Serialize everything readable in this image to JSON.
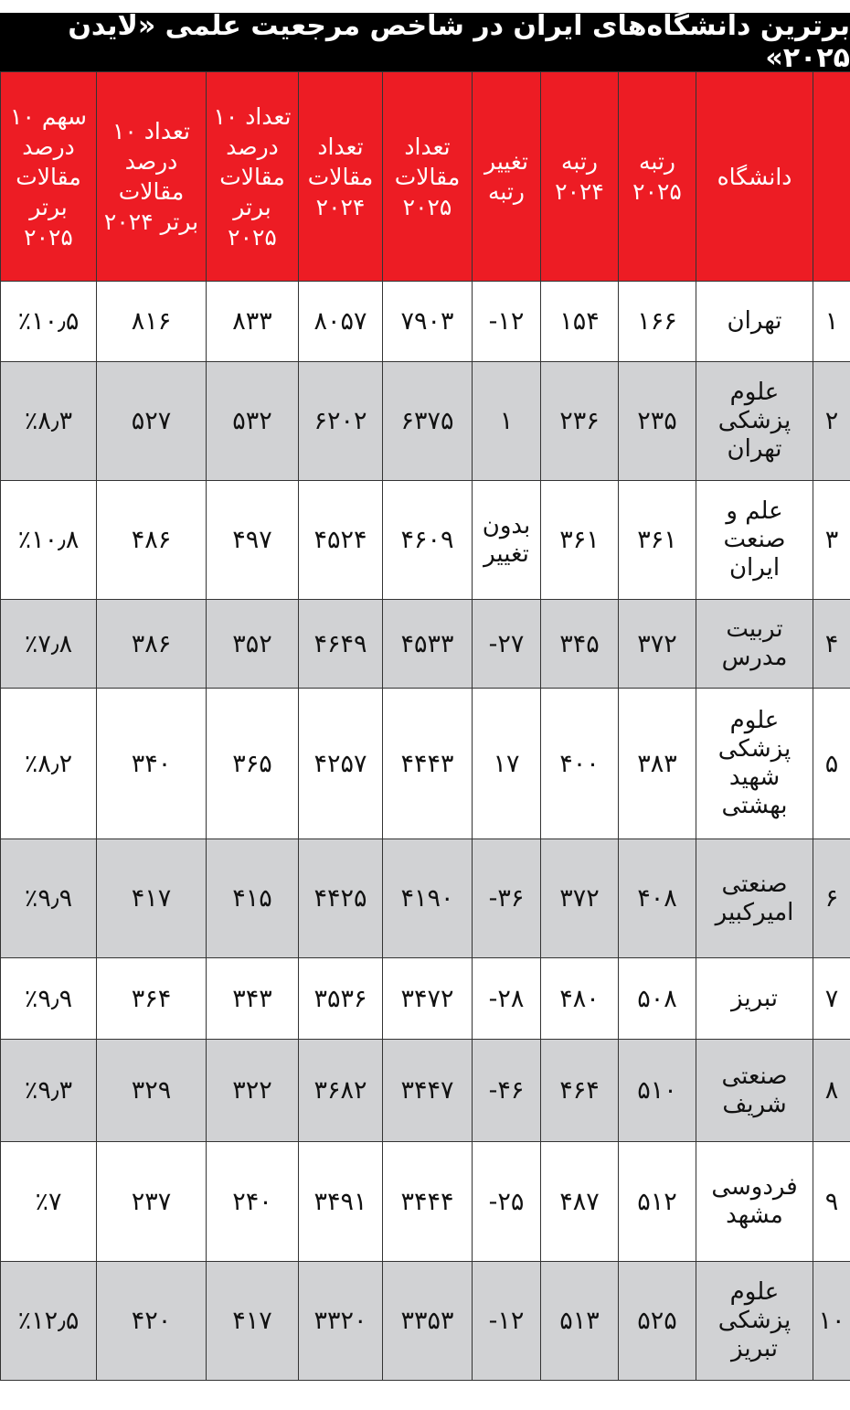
{
  "title": "برترین دانشگاه‌های ایران در شاخص مرجعیت علمی «لایدن ۲۰۲۵»",
  "colors": {
    "header_bg": "#ed1c24",
    "title_bg": "#000000",
    "alt_row": "#d1d2d4"
  },
  "columns": [
    "",
    "دانشگاه",
    "رتبه ۲۰۲۵",
    "رتبه ۲۰۲۴",
    "تغییر رتبه",
    "تعداد مقالات ۲۰۲۵",
    "تعداد مقالات ۲۰۲۴",
    "تعداد ۱۰ درصد مقالات برتر ۲۰۲۵",
    "تعداد ۱۰ درصد مقالات برتر ۲۰۲۴",
    "سهم ۱۰ درصد مقالات برتر ۲۰۲۵"
  ],
  "rows": [
    [
      "۱",
      "تهران",
      "۱۶۶",
      "۱۵۴",
      "-۱۲",
      "۷۹۰۳",
      "۸۰۵۷",
      "۸۳۳",
      "۸۱۶",
      "٪۱۰٫۵"
    ],
    [
      "۲",
      "علوم پزشکی تهران",
      "۲۳۵",
      "۲۳۶",
      "۱",
      "۶۳۷۵",
      "۶۲۰۲",
      "۵۳۲",
      "۵۲۷",
      "٪۸٫۳"
    ],
    [
      "۳",
      "علم و صنعت ایران",
      "۳۶۱",
      "۳۶۱",
      "بدون تغییر",
      "۴۶۰۹",
      "۴۵۲۴",
      "۴۹۷",
      "۴۸۶",
      "٪۱۰٫۸"
    ],
    [
      "۴",
      "تربیت مدرس",
      "۳۷۲",
      "۳۴۵",
      "-۲۷",
      "۴۵۳۳",
      "۴۶۴۹",
      "۳۵۲",
      "۳۸۶",
      "٪۷٫۸"
    ],
    [
      "۵",
      "علوم پزشکی شهید بهشتی",
      "۳۸۳",
      "۴۰۰",
      "۱۷",
      "۴۴۴۳",
      "۴۲۵۷",
      "۳۶۵",
      "۳۴۰",
      "٪۸٫۲"
    ],
    [
      "۶",
      "صنعتی امیرکبیر",
      "۴۰۸",
      "۳۷۲",
      "-۳۶",
      "۴۱۹۰",
      "۴۴۲۵",
      "۴۱۵",
      "۴۱۷",
      "٪۹٫۹"
    ],
    [
      "۷",
      "تبریز",
      "۵۰۸",
      "۴۸۰",
      "-۲۸",
      "۳۴۷۲",
      "۳۵۳۶",
      "۳۴۳",
      "۳۶۴",
      "٪۹٫۹"
    ],
    [
      "۸",
      "صنعتی شریف",
      "۵۱۰",
      "۴۶۴",
      "-۴۶",
      "۳۴۴۷",
      "۳۶۸۲",
      "۳۲۲",
      "۳۲۹",
      "٪۹٫۳"
    ],
    [
      "۹",
      "فردوسی مشهد",
      "۵۱۲",
      "۴۸۷",
      "-۲۵",
      "۳۴۴۴",
      "۳۴۹۱",
      "۲۴۰",
      "۲۳۷",
      "٪۷"
    ],
    [
      "۱۰",
      "علوم پزشکی تبریز",
      "۵۲۵",
      "۵۱۳",
      "-۱۲",
      "۳۳۵۳",
      "۳۳۲۰",
      "۴۱۷",
      "۴۲۰",
      "٪۱۲٫۵"
    ]
  ]
}
